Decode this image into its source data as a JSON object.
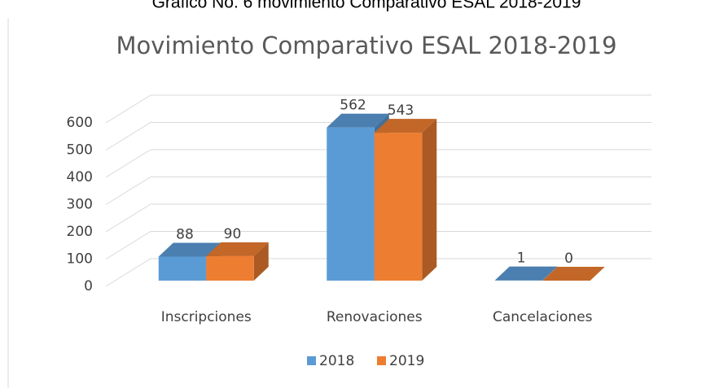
{
  "header": {
    "caption": "Grafico No. 6 movimiento Comparativo ESAL 2018-2019"
  },
  "chart_data": {
    "type": "bar3d",
    "title": "Movimiento Comparativo ESAL 2018-2019",
    "categories": [
      "Inscripciones",
      "Renovaciones",
      "Cancelaciones"
    ],
    "series": [
      {
        "name": "2018",
        "color": "#5b9bd5",
        "values": [
          88,
          562,
          1
        ]
      },
      {
        "name": "2019",
        "color": "#ed7d31",
        "values": [
          90,
          543,
          0
        ]
      }
    ],
    "ylim": [
      0,
      600
    ],
    "yticks": [
      0,
      100,
      200,
      300,
      400,
      500,
      600
    ],
    "grid": true,
    "legend": "bottom"
  }
}
